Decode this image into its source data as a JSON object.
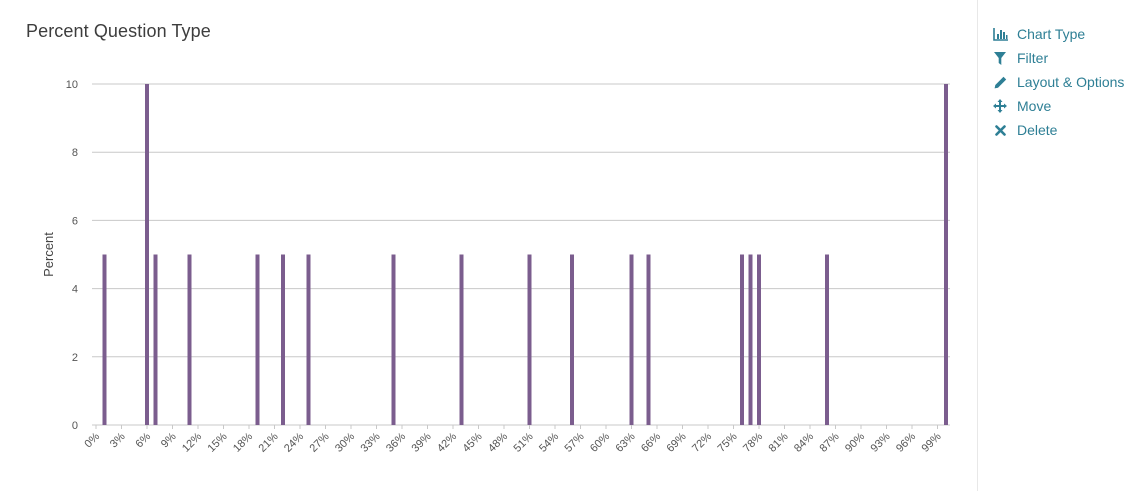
{
  "chart_data": {
    "type": "bar",
    "title": "Percent Question Type",
    "xlabel": "",
    "ylabel": "Percent",
    "ylim": [
      0,
      10
    ],
    "yticks": [
      0,
      2,
      4,
      6,
      8,
      10
    ],
    "grid": true,
    "categories": [
      "0%",
      "1%",
      "2%",
      "3%",
      "4%",
      "5%",
      "6%",
      "7%",
      "8%",
      "9%",
      "10%",
      "11%",
      "12%",
      "13%",
      "14%",
      "15%",
      "16%",
      "17%",
      "18%",
      "19%",
      "20%",
      "21%",
      "22%",
      "23%",
      "24%",
      "25%",
      "26%",
      "27%",
      "28%",
      "29%",
      "30%",
      "31%",
      "32%",
      "33%",
      "34%",
      "35%",
      "36%",
      "37%",
      "38%",
      "39%",
      "40%",
      "41%",
      "42%",
      "43%",
      "44%",
      "45%",
      "46%",
      "47%",
      "48%",
      "49%",
      "50%",
      "51%",
      "52%",
      "53%",
      "54%",
      "55%",
      "56%",
      "57%",
      "58%",
      "59%",
      "60%",
      "61%",
      "62%",
      "63%",
      "64%",
      "65%",
      "66%",
      "67%",
      "68%",
      "69%",
      "70%",
      "71%",
      "72%",
      "73%",
      "74%",
      "75%",
      "76%",
      "77%",
      "78%",
      "79%",
      "80%",
      "81%",
      "82%",
      "83%",
      "84%",
      "85%",
      "86%",
      "87%",
      "88%",
      "89%",
      "90%",
      "91%",
      "92%",
      "93%",
      "94%",
      "95%",
      "96%",
      "97%",
      "98%",
      "99%",
      "100%"
    ],
    "tick_labels": [
      "0%",
      "3%",
      "6%",
      "9%",
      "12%",
      "15%",
      "18%",
      "21%",
      "24%",
      "27%",
      "30%",
      "33%",
      "36%",
      "39%",
      "42%",
      "45%",
      "48%",
      "51%",
      "54%",
      "57%",
      "60%",
      "63%",
      "66%",
      "69%",
      "72%",
      "75%",
      "78%",
      "81%",
      "84%",
      "87%",
      "90%",
      "93%",
      "96%",
      "99%"
    ],
    "values": [
      0,
      5,
      0,
      0,
      0,
      0,
      10,
      5,
      0,
      0,
      0,
      5,
      0,
      0,
      0,
      0,
      0,
      0,
      0,
      5,
      0,
      0,
      5,
      0,
      0,
      5,
      0,
      0,
      0,
      0,
      0,
      0,
      0,
      0,
      0,
      5,
      0,
      0,
      0,
      0,
      0,
      0,
      0,
      5,
      0,
      0,
      0,
      0,
      0,
      0,
      0,
      5,
      0,
      0,
      0,
      0,
      5,
      0,
      0,
      0,
      0,
      0,
      0,
      5,
      0,
      5,
      0,
      0,
      0,
      0,
      0,
      0,
      0,
      0,
      0,
      0,
      5,
      5,
      5,
      0,
      0,
      0,
      0,
      0,
      0,
      0,
      5,
      0,
      0,
      0,
      0,
      0,
      0,
      0,
      0,
      0,
      0,
      0,
      0,
      0,
      10
    ],
    "bar_color": "#7b5d8e"
  },
  "menu": {
    "items": [
      {
        "label": "Chart Type",
        "icon": "bar-chart-icon"
      },
      {
        "label": "Filter",
        "icon": "filter-icon"
      },
      {
        "label": "Layout & Options",
        "icon": "pencil-icon"
      },
      {
        "label": "Move",
        "icon": "move-arrows-icon"
      },
      {
        "label": "Delete",
        "icon": "close-icon"
      }
    ]
  },
  "colors": {
    "accent": "#2e7f95",
    "grid": "#c8c8c8",
    "tick_text": "#555555"
  }
}
